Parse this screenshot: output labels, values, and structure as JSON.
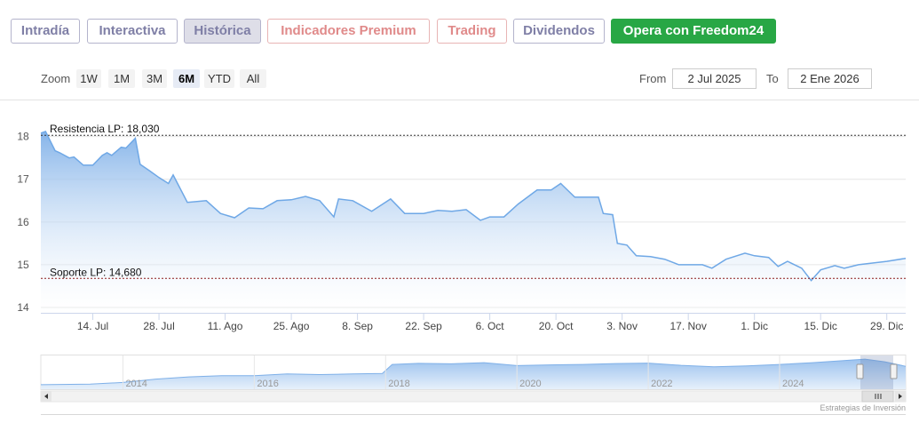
{
  "tabs": [
    {
      "label": "Intradía"
    },
    {
      "label": "Interactiva"
    },
    {
      "label": "Histórica",
      "active": true
    },
    {
      "label": "Indicadores Premium"
    },
    {
      "label": "Trading"
    },
    {
      "label": "Dividendos"
    },
    {
      "label": "Opera con Freedom24"
    }
  ],
  "zoom": {
    "label": "Zoom",
    "buttons": [
      {
        "label": "1W"
      },
      {
        "label": "1M"
      },
      {
        "label": "3M"
      },
      {
        "label": "6M",
        "active": true
      },
      {
        "label": "YTD"
      },
      {
        "label": "All"
      }
    ]
  },
  "range": {
    "from_label": "From",
    "from": "2 Jul 2025",
    "to_label": "To",
    "to": "2 Ene 2026"
  },
  "credits": "Estrategias de Inversión",
  "chart_data": [
    {
      "type": "area",
      "color": "#6fa8e6",
      "x": [
        "2025-07-03",
        "2025-07-04",
        "2025-07-06",
        "2025-07-07",
        "2025-07-09",
        "2025-07-10",
        "2025-07-12",
        "2025-07-14",
        "2025-07-16",
        "2025-07-17",
        "2025-07-18",
        "2025-07-20",
        "2025-07-21",
        "2025-07-23",
        "2025-07-24",
        "2025-07-26",
        "2025-07-28",
        "2025-07-30",
        "2025-07-31",
        "2025-08-03",
        "2025-08-07",
        "2025-08-10",
        "2025-08-13",
        "2025-08-16",
        "2025-08-19",
        "2025-08-22",
        "2025-08-25",
        "2025-08-28",
        "2025-08-31",
        "2025-09-03",
        "2025-09-04",
        "2025-09-07",
        "2025-09-11",
        "2025-09-15",
        "2025-09-18",
        "2025-09-22",
        "2025-09-25",
        "2025-09-28",
        "2025-10-01",
        "2025-10-04",
        "2025-10-06",
        "2025-10-09",
        "2025-10-12",
        "2025-10-16",
        "2025-10-19",
        "2025-10-21",
        "2025-10-24",
        "2025-10-29",
        "2025-10-30",
        "2025-11-01",
        "2025-11-02",
        "2025-11-04",
        "2025-11-06",
        "2025-11-09",
        "2025-11-12",
        "2025-11-15",
        "2025-11-20",
        "2025-11-22",
        "2025-11-25",
        "2025-11-29",
        "2025-12-01",
        "2025-12-04",
        "2025-12-06",
        "2025-12-08",
        "2025-12-11",
        "2025-12-13",
        "2025-12-15",
        "2025-12-18",
        "2025-12-20",
        "2025-12-23",
        "2025-12-26",
        "2025-12-29",
        "2026-01-02"
      ],
      "values": [
        18.08,
        18.12,
        17.67,
        17.62,
        17.5,
        17.52,
        17.33,
        17.33,
        17.56,
        17.62,
        17.56,
        17.75,
        17.73,
        17.96,
        17.35,
        17.2,
        17.04,
        16.9,
        17.1,
        16.46,
        16.5,
        16.2,
        16.1,
        16.33,
        16.31,
        16.5,
        16.52,
        16.6,
        16.5,
        16.12,
        16.54,
        16.5,
        16.25,
        16.54,
        16.2,
        16.2,
        16.27,
        16.25,
        16.29,
        16.04,
        16.12,
        16.12,
        16.42,
        16.75,
        16.75,
        16.9,
        16.58,
        16.58,
        16.2,
        16.17,
        15.5,
        15.46,
        15.21,
        15.19,
        15.13,
        15.0,
        15.0,
        14.92,
        15.13,
        15.27,
        15.21,
        15.17,
        14.96,
        15.08,
        14.92,
        14.63,
        14.88,
        14.98,
        14.92,
        15.0,
        15.04,
        15.08,
        15.15
      ],
      "xlim": [
        "2025-07-03",
        "2026-01-02"
      ],
      "xticks": [
        {
          "value": "2025-07-14",
          "label": "14. Jul"
        },
        {
          "value": "2025-07-28",
          "label": "28. Jul"
        },
        {
          "value": "2025-08-11",
          "label": "11. Ago"
        },
        {
          "value": "2025-08-25",
          "label": "25. Ago"
        },
        {
          "value": "2025-09-08",
          "label": "8. Sep"
        },
        {
          "value": "2025-09-22",
          "label": "22. Sep"
        },
        {
          "value": "2025-10-06",
          "label": "6. Oct"
        },
        {
          "value": "2025-10-20",
          "label": "20. Oct"
        },
        {
          "value": "2025-11-03",
          "label": "3. Nov"
        },
        {
          "value": "2025-11-17",
          "label": "17. Nov"
        },
        {
          "value": "2025-12-01",
          "label": "1. Dic"
        },
        {
          "value": "2025-12-15",
          "label": "15. Dic"
        },
        {
          "value": "2025-12-29",
          "label": "29. Dic"
        }
      ],
      "ylim": [
        13.875,
        18.7
      ],
      "yticks": [
        14,
        15,
        16,
        17,
        18
      ],
      "grid": true,
      "reference_lines": [
        {
          "value": 18.03,
          "label": "Resistencia LP: 18,030",
          "color": "#333333"
        },
        {
          "value": 14.68,
          "label": "Soporte LP: 14,680",
          "color": "#8b1a1a"
        }
      ]
    },
    {
      "type": "area",
      "color": "#7fb0e8",
      "x": [
        2012.75,
        2013.5,
        2014,
        2014.5,
        2015,
        2015.5,
        2016,
        2016.5,
        2017,
        2017.5,
        2017.95,
        2018.1,
        2018.5,
        2019,
        2019.5,
        2020,
        2020.5,
        2021,
        2021.5,
        2022,
        2022.5,
        2023,
        2023.5,
        2024,
        2024.5,
        2025,
        2025.3,
        2025.6,
        2025.92
      ],
      "values": [
        7,
        7.3,
        8,
        9.5,
        10.5,
        11,
        11,
        11.8,
        11.5,
        11.8,
        12,
        16,
        16.5,
        16.3,
        16.8,
        15.5,
        15.8,
        16,
        16.4,
        16.6,
        15.6,
        15,
        15.4,
        16,
        16.8,
        17.8,
        18.4,
        17.2,
        15.2
      ],
      "xlim": [
        2012.75,
        2025.92
      ],
      "xticks": [
        2014,
        2016,
        2018,
        2020,
        2022,
        2024
      ],
      "ylim": [
        5,
        20
      ]
    }
  ]
}
